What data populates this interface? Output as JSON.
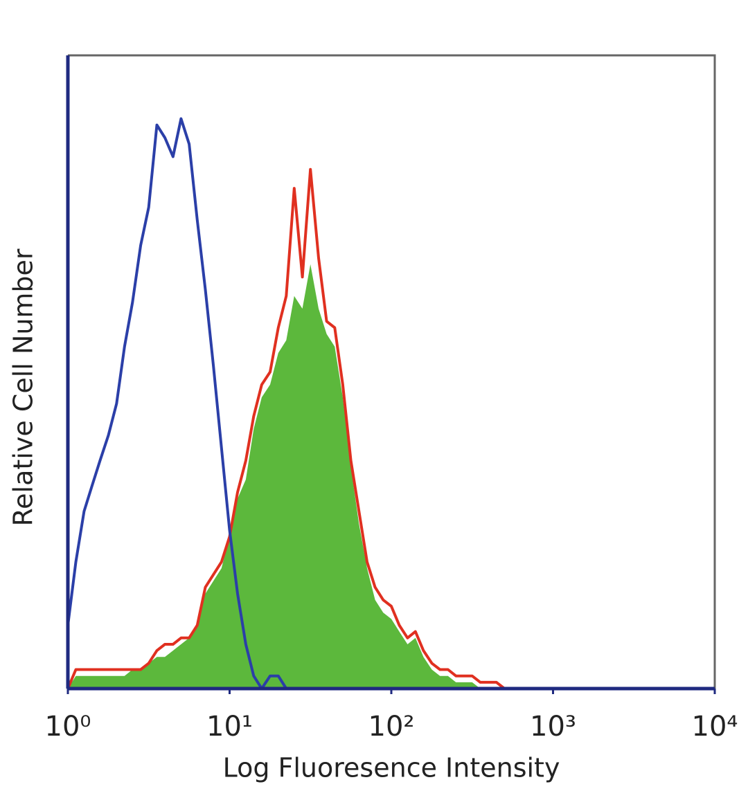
{
  "chart_data": {
    "type": "histogram-overlay",
    "x_label": "Log Fluoresence Intensity",
    "y_label": "Relative Cell Number",
    "log_x": true,
    "xlim": [
      1,
      10000
    ],
    "xticks": [
      {
        "value": 1,
        "label": "10⁰"
      },
      {
        "value": 10,
        "label": "10¹"
      },
      {
        "value": 100,
        "label": "10²"
      },
      {
        "value": 1000,
        "label": "10³"
      },
      {
        "value": 10000,
        "label": "10⁴"
      }
    ],
    "ylim": [
      0,
      100
    ],
    "x": [
      1,
      1.12,
      1.26,
      1.41,
      1.58,
      1.78,
      2,
      2.24,
      2.51,
      2.82,
      3.16,
      3.55,
      3.98,
      4.47,
      5.01,
      5.62,
      6.31,
      7.08,
      7.94,
      8.91,
      10,
      11.2,
      12.6,
      14.1,
      15.8,
      17.8,
      20,
      22.4,
      25.1,
      28.2,
      31.6,
      35.5,
      39.8,
      44.7,
      50.1,
      56.2,
      63.1,
      70.8,
      79.4,
      89.1,
      100,
      112,
      126,
      141,
      158,
      178,
      200,
      224,
      251,
      282,
      316,
      355,
      398,
      447,
      501
    ],
    "series": [
      {
        "style": "area",
        "color": "#5cb83c",
        "values": [
          0,
          2,
          2,
          2,
          2,
          2,
          2,
          2,
          3,
          3,
          4,
          5,
          5,
          6,
          7,
          8,
          10,
          15,
          17,
          19,
          24,
          30,
          33,
          41,
          46,
          48,
          53,
          55,
          62,
          60,
          67,
          60,
          56,
          54,
          46,
          35,
          26,
          19,
          14,
          12,
          11,
          9,
          7,
          8,
          5,
          3,
          2,
          2,
          1,
          1,
          1,
          0,
          0,
          0,
          0
        ]
      },
      {
        "style": "line",
        "color": "#e03020",
        "values": [
          0,
          3,
          3,
          3,
          3,
          3,
          3,
          3,
          3,
          3,
          4,
          6,
          7,
          7,
          8,
          8,
          10,
          16,
          18,
          20,
          24,
          31,
          36,
          43,
          48,
          50,
          57,
          62,
          79,
          65,
          82,
          68,
          58,
          57,
          48,
          36,
          28,
          20,
          16,
          14,
          13,
          10,
          8,
          9,
          6,
          4,
          3,
          3,
          2,
          2,
          2,
          1,
          1,
          1,
          0
        ]
      },
      {
        "style": "line",
        "color": "#2b3fa8",
        "values": [
          10,
          20,
          28,
          32,
          36,
          40,
          45,
          54,
          61,
          70,
          76,
          89,
          87,
          84,
          90,
          86,
          74,
          63,
          51,
          38,
          25,
          15,
          7,
          2,
          0,
          2,
          2,
          0,
          0,
          0,
          0,
          0,
          0,
          0,
          0,
          0,
          0,
          0,
          0,
          0,
          0,
          0,
          0,
          0,
          0,
          0,
          0,
          0,
          0,
          0,
          0,
          0,
          0,
          0,
          0
        ]
      }
    ]
  }
}
